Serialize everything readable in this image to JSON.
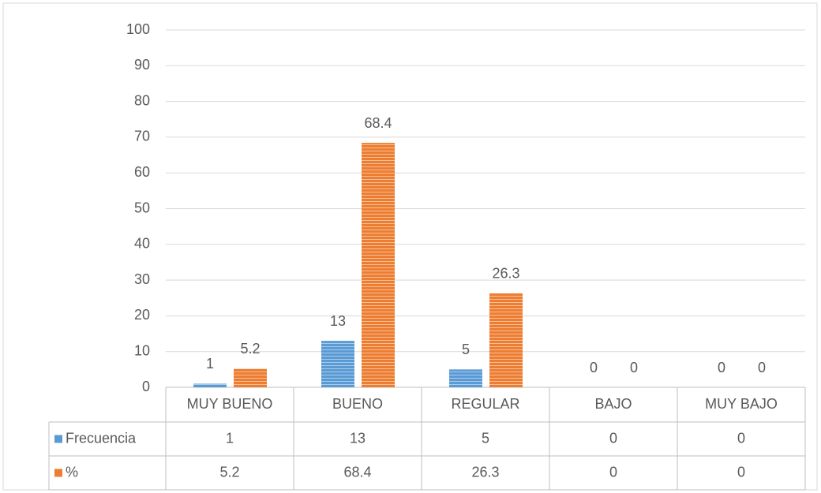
{
  "chart_data": {
    "type": "bar",
    "categories": [
      "MUY BUENO",
      "BUENO",
      "REGULAR",
      "BAJO",
      "MUY BAJO"
    ],
    "series": [
      {
        "name": "Frecuencia",
        "color": "#5b9bd5",
        "values": [
          1,
          13,
          5,
          0,
          0
        ]
      },
      {
        "name": "%",
        "color": "#ed7d31",
        "values": [
          5.2,
          68.4,
          26.3,
          0,
          0
        ]
      }
    ],
    "ylim": [
      0,
      100
    ],
    "yticks": [
      0,
      10,
      20,
      30,
      40,
      50,
      60,
      70,
      80,
      90,
      100
    ],
    "grid": true
  }
}
